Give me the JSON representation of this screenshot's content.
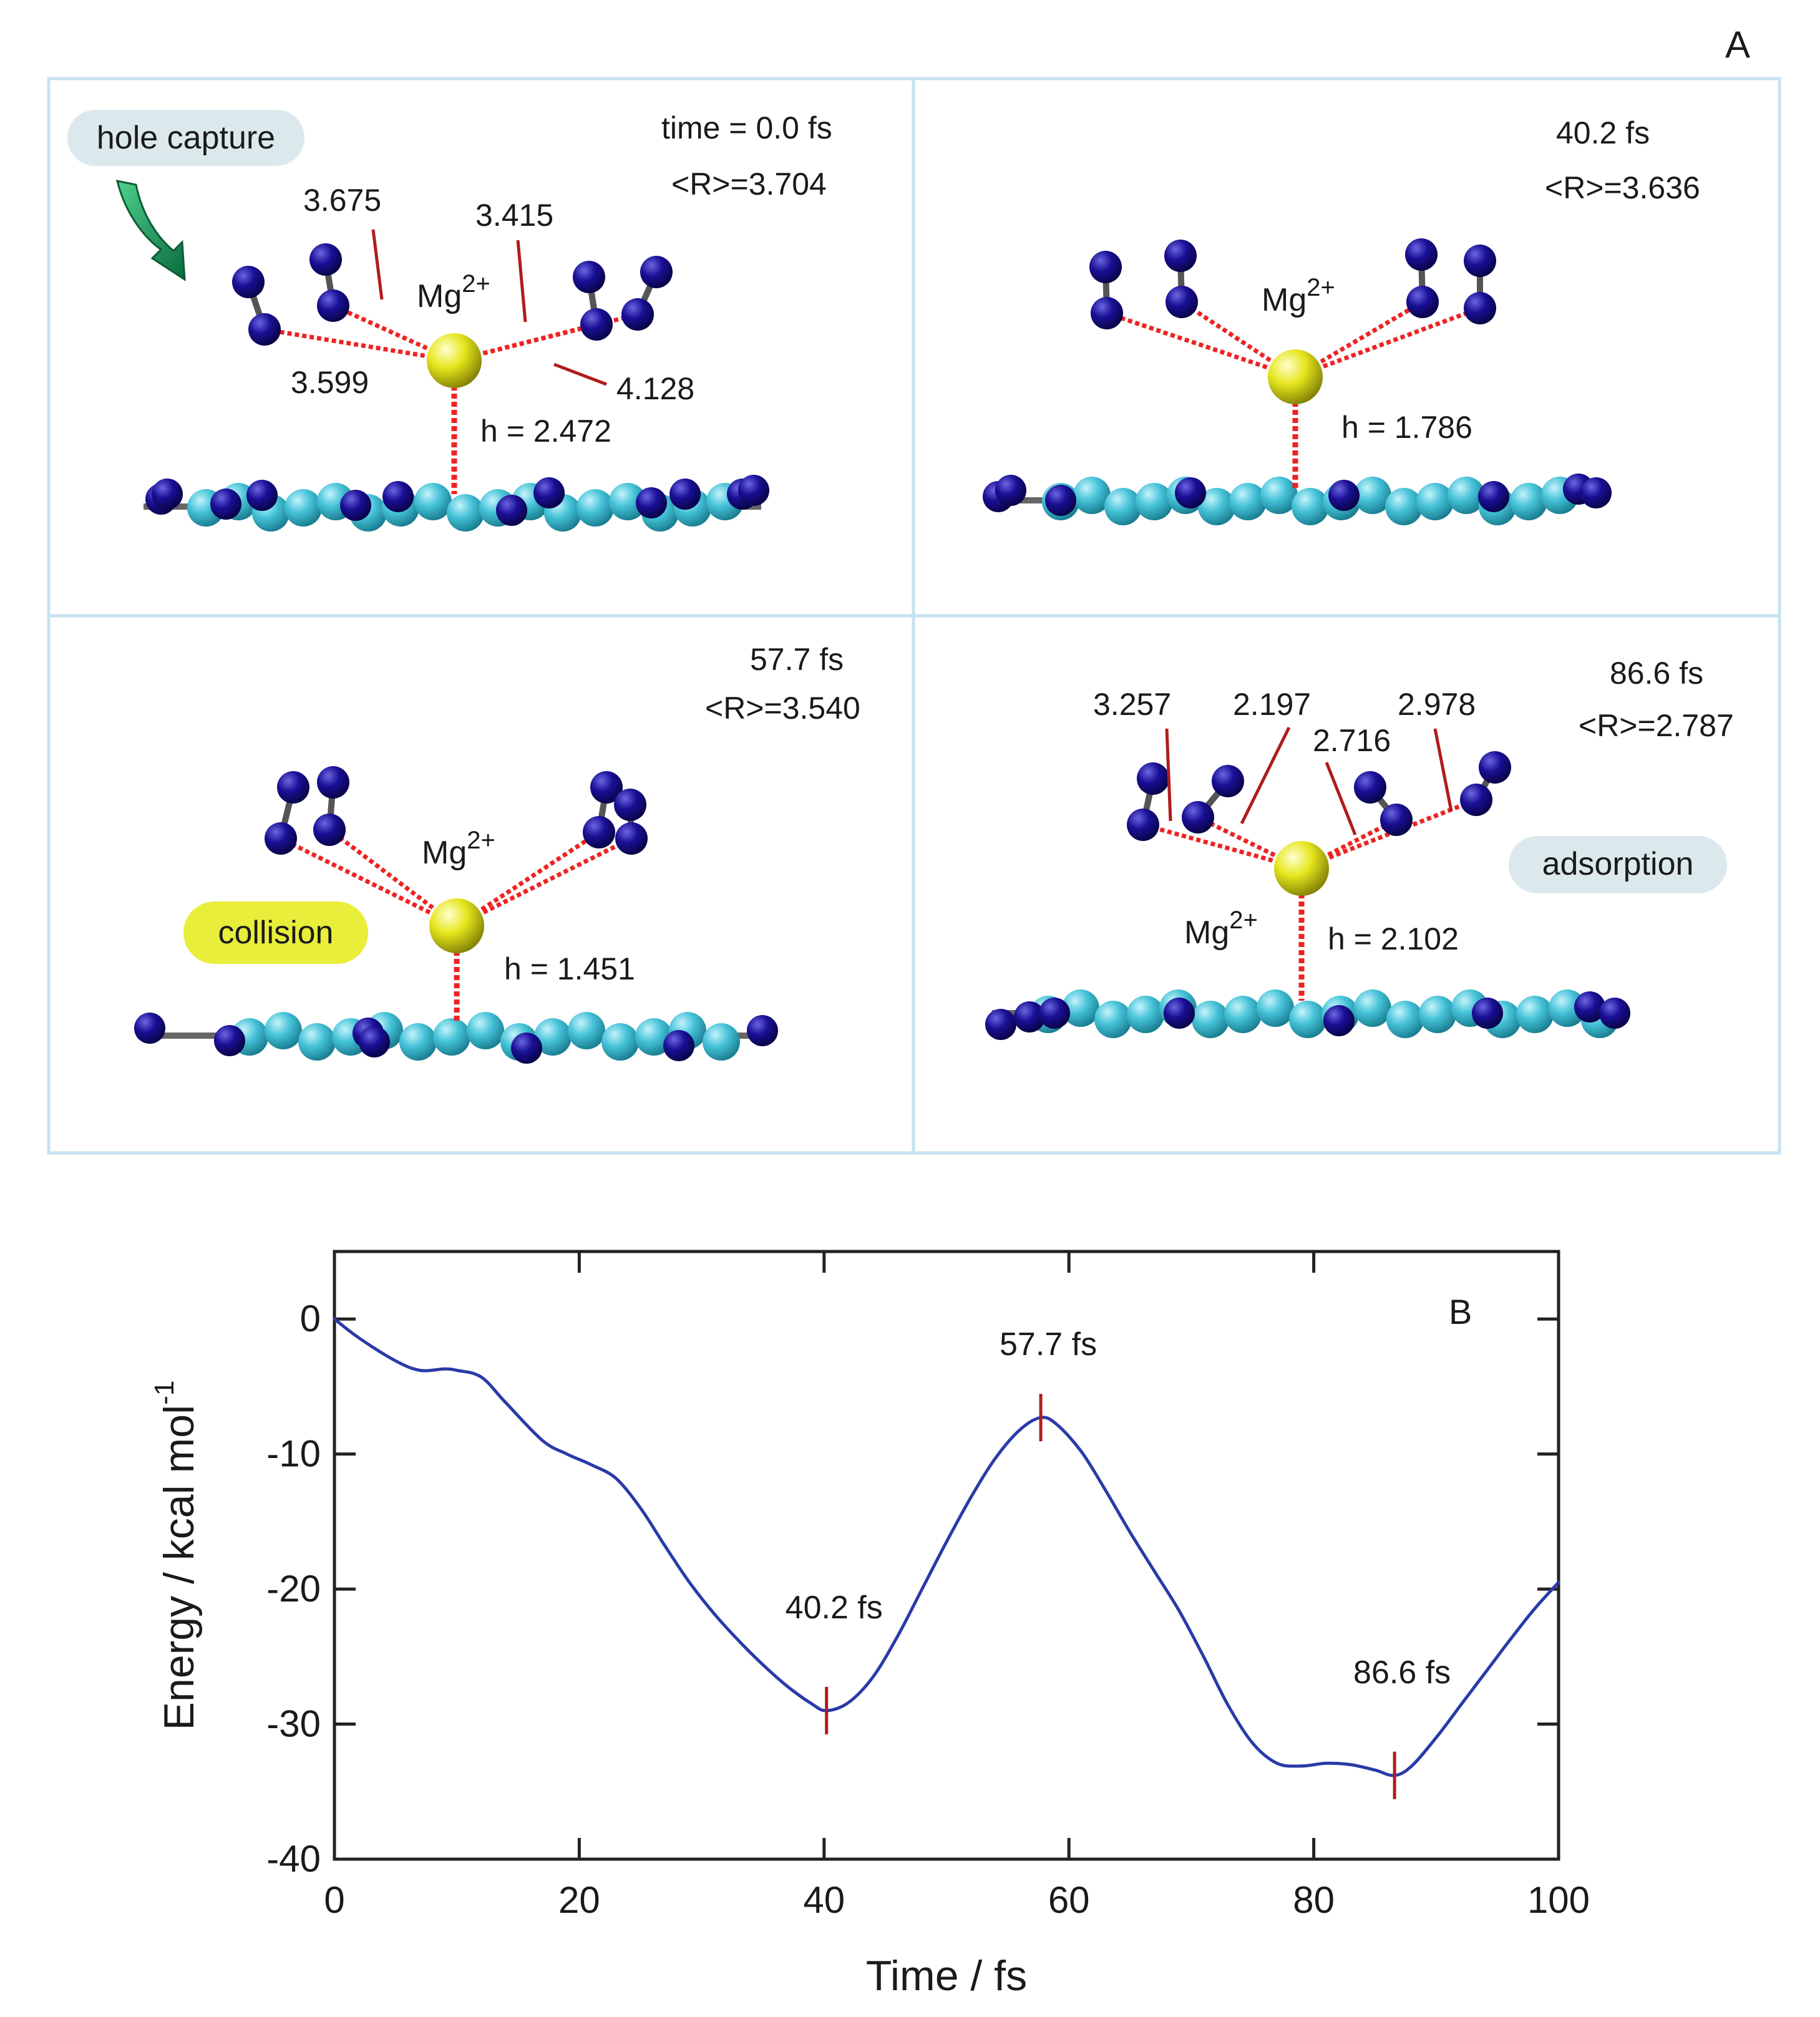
{
  "panelA": {
    "label": "A",
    "frames": [
      {
        "time_label": "time = 0.0 fs",
        "avg_r_label": "<R>=3.704",
        "height_label": "h = 2.472",
        "ion": {
          "base": "Mg",
          "charge": "2+"
        },
        "distances": [
          "3.675",
          "3.415",
          "3.599",
          "4.128"
        ],
        "badge": {
          "text": "hole capture",
          "color": "#dce9ec"
        }
      },
      {
        "time_label": "40.2 fs",
        "avg_r_label": "<R>=3.636",
        "height_label": "h = 1.786",
        "ion": {
          "base": "Mg",
          "charge": "2+"
        },
        "distances": []
      },
      {
        "time_label": "57.7 fs",
        "avg_r_label": "<R>=3.540",
        "height_label": "h = 1.451",
        "ion": {
          "base": "Mg",
          "charge": "2+"
        },
        "distances": [],
        "badge": {
          "text": "collision",
          "color": "#e8ee3a"
        }
      },
      {
        "time_label": "86.6 fs",
        "avg_r_label": "<R>=2.787",
        "height_label": "h = 2.102",
        "ion": {
          "base": "Mg",
          "charge": "2+"
        },
        "distances": [
          "3.257",
          "2.197",
          "2.716",
          "2.978"
        ],
        "badge": {
          "text": "adsorption",
          "color": "#dce9ec"
        }
      }
    ],
    "colors": {
      "frame_border": "#c5e3ee",
      "sheet_atom": "#45c2d8",
      "nitrogen_atom": "#150a8a",
      "ion": "#e6e61e",
      "contact_line": "#ee2222",
      "label_leader": "#b01c1c",
      "arrow": "#17915a"
    }
  },
  "chart_data": {
    "type": "line",
    "panel_label": "B",
    "xlabel": "Time / fs",
    "ylabel": {
      "base": "Energy / kcal mol",
      "exponent": "-1"
    },
    "xlim": [
      0,
      100
    ],
    "ylim": [
      -40,
      5
    ],
    "xticks": [
      "0",
      "20",
      "40",
      "60",
      "80",
      "100"
    ],
    "yticks": [
      "0",
      "-10",
      "-20",
      "-30",
      "-40"
    ],
    "series": [
      {
        "color": "#2a3aa8",
        "x": [
          0,
          2,
          5,
          7,
          9,
          10,
          12,
          14,
          17,
          19,
          21,
          23,
          25,
          27,
          29,
          31,
          33,
          35,
          37,
          39,
          40.2,
          42,
          44,
          46,
          48,
          50,
          52,
          54,
          56,
          57.7,
          59,
          61,
          63,
          65,
          67,
          69,
          71,
          73,
          75,
          77,
          79,
          81,
          83,
          85,
          86.6,
          88,
          90,
          92,
          94,
          96,
          98,
          100
        ],
        "y": [
          0,
          -1.4,
          -3.1,
          -3.8,
          -3.7,
          -3.8,
          -4.3,
          -6.2,
          -9.0,
          -10.0,
          -10.8,
          -11.8,
          -14.0,
          -16.8,
          -19.5,
          -21.8,
          -23.8,
          -25.6,
          -27.2,
          -28.5,
          -29.0,
          -28.4,
          -26.5,
          -23.5,
          -20.0,
          -16.5,
          -13.2,
          -10.3,
          -8.2,
          -7.3,
          -7.8,
          -9.8,
          -12.7,
          -15.8,
          -18.7,
          -21.6,
          -25.0,
          -28.6,
          -31.4,
          -32.9,
          -33.1,
          -32.9,
          -33.0,
          -33.4,
          -33.8,
          -33.1,
          -31.0,
          -28.6,
          -26.2,
          -23.8,
          -21.5,
          -19.5
        ]
      }
    ],
    "annotations": [
      {
        "text": "40.2 fs",
        "x": 40.2,
        "y": -29.0
      },
      {
        "text": "57.7 fs",
        "x": 57.7,
        "y": -7.3
      },
      {
        "text": "86.6 fs",
        "x": 86.6,
        "y": -33.8
      }
    ],
    "grid": false
  }
}
